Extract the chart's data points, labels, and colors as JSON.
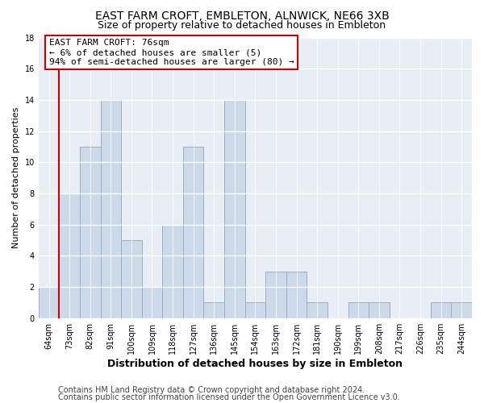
{
  "title": "EAST FARM CROFT, EMBLETON, ALNWICK, NE66 3XB",
  "subtitle": "Size of property relative to detached houses in Embleton",
  "xlabel": "Distribution of detached houses by size in Embleton",
  "ylabel": "Number of detached properties",
  "bar_color": "#ccd9e8",
  "bar_edge_color": "#9ab0c8",
  "categories": [
    "64sqm",
    "73sqm",
    "82sqm",
    "91sqm",
    "100sqm",
    "109sqm",
    "118sqm",
    "127sqm",
    "136sqm",
    "145sqm",
    "154sqm",
    "163sqm",
    "172sqm",
    "181sqm",
    "190sqm",
    "199sqm",
    "208sqm",
    "217sqm",
    "226sqm",
    "235sqm",
    "244sqm"
  ],
  "values": [
    2,
    8,
    11,
    14,
    5,
    2,
    6,
    11,
    1,
    14,
    1,
    3,
    3,
    1,
    0,
    1,
    1,
    0,
    0,
    1,
    1
  ],
  "ylim": [
    0,
    18
  ],
  "yticks": [
    0,
    2,
    4,
    6,
    8,
    10,
    12,
    14,
    16,
    18
  ],
  "vline_x": 1,
  "vline_color": "#cc0000",
  "annotation_box_bg": "#ffffff",
  "annotation_box_edge": "#cc0000",
  "annotation_title": "EAST FARM CROFT: 76sqm",
  "annotation_line1": "← 6% of detached houses are smaller (5)",
  "annotation_line2": "94% of semi-detached houses are larger (80) →",
  "footer1": "Contains HM Land Registry data © Crown copyright and database right 2024.",
  "footer2": "Contains public sector information licensed under the Open Government Licence v3.0.",
  "bg_color": "#ffffff",
  "plot_bg_color": "#e8eef4",
  "grid_color": "#ffffff",
  "title_fontsize": 10,
  "subtitle_fontsize": 9,
  "tick_fontsize": 7,
  "ylabel_fontsize": 8,
  "xlabel_fontsize": 9,
  "annot_fontsize": 8,
  "footer_fontsize": 7
}
